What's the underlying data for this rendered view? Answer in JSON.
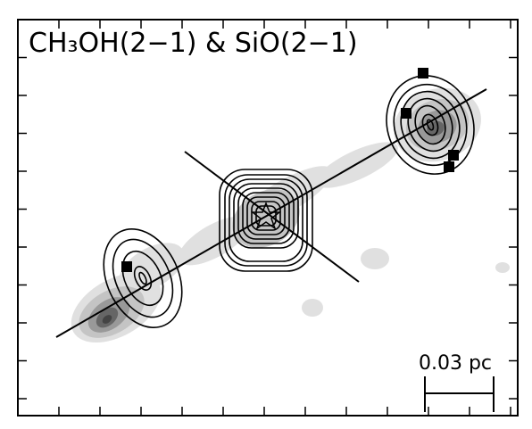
{
  "title": "CH₃OH(2−1) & SiO(2−1)",
  "scale_bar": {
    "label": "0.03 pc"
  }
}
